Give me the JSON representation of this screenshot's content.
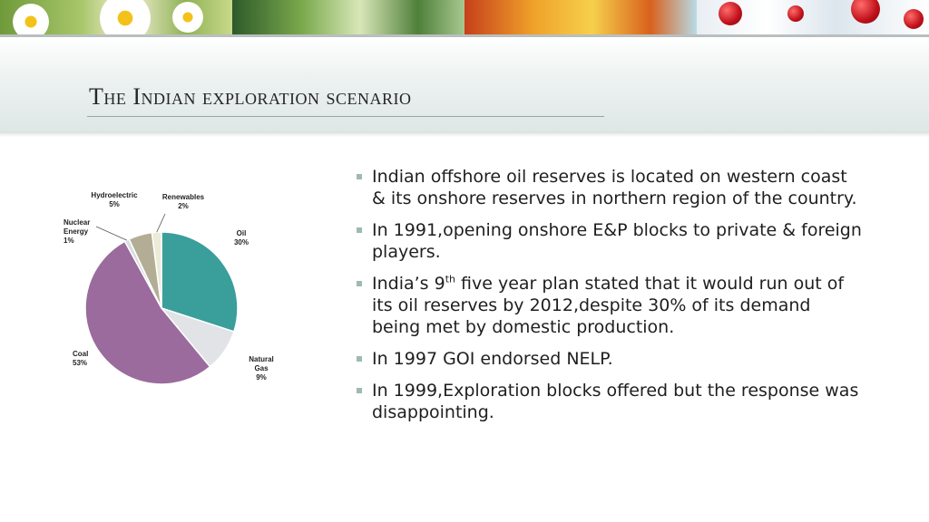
{
  "slide": {
    "title": "The Indian exploration scenario"
  },
  "bullets": [
    {
      "text": "Indian offshore oil reserves is located on western coast & its onshore reserves in northern region of the country."
    },
    {
      "text": "In 1991,opening onshore E&P blocks to private & foreign players."
    },
    {
      "pre": "India’s 9",
      "sup": "th",
      "post": " five year plan stated that it would run out of its oil reserves by 2012,despite 30% of its demand being met by domestic production."
    },
    {
      "text": "In 1997 GOI endorsed NELP."
    },
    {
      "text": "In 1999,Exploration blocks offered but the response was disappointing."
    }
  ],
  "chart_data": {
    "type": "pie",
    "title": "",
    "slices": [
      {
        "label": "Oil",
        "value": 30,
        "value_label": "30%",
        "color": "#3a9e9b"
      },
      {
        "label": "Natural Gas",
        "value": 9,
        "value_label": "9%",
        "color": "#e1e3e6"
      },
      {
        "label": "Coal",
        "value": 53,
        "value_label": "53%",
        "color": "#9a6b9c"
      },
      {
        "label": "Nuclear Energy",
        "value": 1,
        "value_label": "1%",
        "color": "#d9dbde"
      },
      {
        "label": "Hydroelectric",
        "value": 5,
        "value_label": "5%",
        "color": "#b3ad96"
      },
      {
        "label": "Renewables",
        "value": 2,
        "value_label": "2%",
        "color": "#ebebd8"
      }
    ],
    "start_angle_deg": 0,
    "direction": "clockwise",
    "legend": "none"
  },
  "colors": {
    "bullet_marker": "#9fb9b5",
    "title_text": "#262626"
  }
}
